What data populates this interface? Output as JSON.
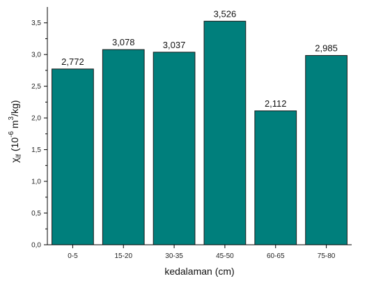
{
  "chart_data": {
    "type": "bar",
    "categories": [
      "0-5",
      "15-20",
      "30-35",
      "45-50",
      "60-65",
      "75-80"
    ],
    "values": [
      2.772,
      3.078,
      3.037,
      3.526,
      2.112,
      2.985
    ],
    "value_labels": [
      "2,772",
      "3,078",
      "3,037",
      "3,526",
      "2,112",
      "2,985"
    ],
    "xlabel": "kedalaman (cm)",
    "ylabel": {
      "base": "χ",
      "sub": "lf",
      "units_prefix": " (10",
      "exp1": "-6",
      "mid": " m",
      "exp2": "3",
      "suffix": "/kg)"
    },
    "ylim": [
      0,
      3.75
    ],
    "yticks": [
      0,
      0.5,
      1.0,
      1.5,
      2.0,
      2.5,
      3.0,
      3.5
    ],
    "ytick_labels": [
      "0,0",
      "0,5",
      "1,0",
      "1,5",
      "2,0",
      "2,5",
      "3,0",
      "3,5"
    ],
    "grid": false,
    "colors": {
      "bar_fill": "#007f7c",
      "bar_stroke": "#1a1a1a",
      "axis": "#000000"
    }
  }
}
